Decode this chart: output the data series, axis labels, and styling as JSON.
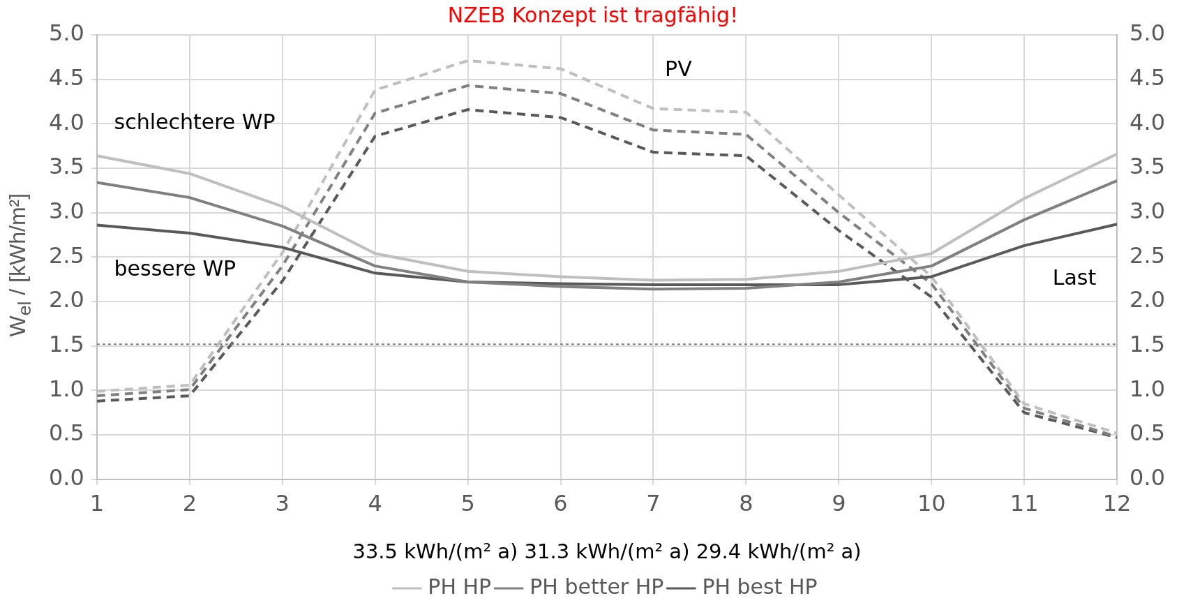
{
  "chart_data": {
    "type": "line",
    "title": "NZEB Konzept ist tragfähig!",
    "xlabel": "33.5 kWh/(m² a) 31.3 kWh/(m² a) 29.4 kWh/(m² a)",
    "ylabel": "W$_{el}$ / [kWh/m²]",
    "x": [
      1,
      2,
      3,
      4,
      5,
      6,
      7,
      8,
      9,
      10,
      11,
      12
    ],
    "xlim": [
      1,
      12
    ],
    "xticks": [
      1,
      2,
      3,
      4,
      5,
      6,
      7,
      8,
      9,
      10,
      11,
      12
    ],
    "ylim": [
      0,
      5
    ],
    "yticks": [
      {
        "value": 0,
        "label": "0.0"
      },
      0.5,
      {
        "value": 1,
        "label": "1.0"
      },
      1.5,
      {
        "value": 2,
        "label": "2.0"
      },
      2.5,
      {
        "value": 3,
        "label": "3.0"
      },
      3.5,
      {
        "value": 4,
        "label": "4.0"
      },
      4.5,
      {
        "value": 5,
        "label": "5.0"
      }
    ],
    "y2lim": [
      0,
      5
    ],
    "y2ticks": [
      {
        "value": 0,
        "label": "0.0"
      },
      0.5,
      {
        "value": 1,
        "label": "1.0"
      },
      1.5,
      {
        "value": 2,
        "label": "2.0"
      },
      2.5,
      {
        "value": 3,
        "label": "3.0"
      },
      3.5,
      {
        "value": 4,
        "label": "4.0"
      },
      4.5,
      {
        "value": 5,
        "label": "5.0"
      }
    ],
    "grid": true,
    "legend": "bottom",
    "marker": "none",
    "series": [
      {
        "name": "PH HP",
        "color": "#bfbfbf",
        "line_style": "solid",
        "values": [
          3.64,
          3.44,
          3.07,
          2.54,
          2.34,
          2.28,
          2.24,
          2.25,
          2.34,
          2.54,
          3.16,
          3.66
        ]
      },
      {
        "name": "PH better HP",
        "color": "#808080",
        "line_style": "solid",
        "values": [
          3.34,
          3.17,
          2.85,
          2.4,
          2.22,
          2.17,
          2.14,
          2.15,
          2.22,
          2.4,
          2.92,
          3.36
        ]
      },
      {
        "name": "PH best HP",
        "color": "#595959",
        "line_style": "solid",
        "values": [
          2.86,
          2.77,
          2.61,
          2.32,
          2.22,
          2.2,
          2.19,
          2.19,
          2.19,
          2.28,
          2.63,
          2.87
        ]
      },
      {
        "color": "#bfbfbf",
        "line_style": "dashed",
        "values": [
          0.99,
          1.06,
          2.55,
          4.38,
          4.71,
          4.62,
          4.17,
          4.13,
          3.2,
          2.28,
          0.85,
          0.52
        ]
      },
      {
        "color": "#808080",
        "line_style": "dashed",
        "values": [
          0.94,
          1.01,
          2.4,
          4.12,
          4.43,
          4.34,
          3.93,
          3.88,
          3.0,
          2.2,
          0.8,
          0.48
        ]
      },
      {
        "color": "#595959",
        "line_style": "dashed",
        "values": [
          0.88,
          0.94,
          2.23,
          3.86,
          4.16,
          4.07,
          3.68,
          3.64,
          2.8,
          2.05,
          0.75,
          0.47
        ]
      }
    ],
    "ref_lines": [
      {
        "axis": "y",
        "value": 1.52,
        "color": "#7f7f7f",
        "line_style": "dotted"
      }
    ],
    "annotations": [
      "schlechtere WP",
      "bessere WP",
      "PV",
      "Last"
    ]
  }
}
